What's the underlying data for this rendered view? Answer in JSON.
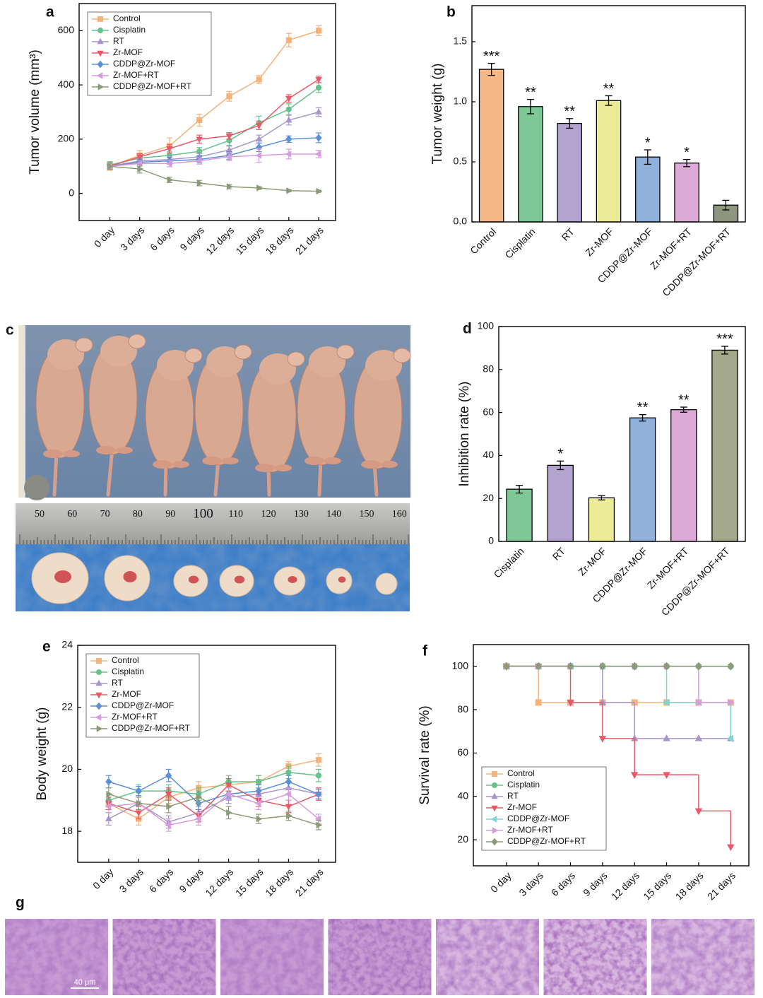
{
  "panel_labels": [
    "a",
    "b",
    "c",
    "d",
    "e",
    "f",
    "g"
  ],
  "photo": {
    "ruler_labels": [
      50,
      60,
      70,
      80,
      90,
      100,
      110,
      120,
      130,
      140,
      150,
      160
    ],
    "scale_bar": "40 μm"
  },
  "chart_data": [
    {
      "type": "line",
      "ylabel": "Tumor volume (mm³)",
      "categories": [
        "0 day",
        "3 days",
        "6 days",
        "9 days",
        "12 days",
        "15 days",
        "18 days",
        "21 days"
      ],
      "ylim": [
        -100,
        700
      ],
      "yticks": [
        0,
        200,
        400,
        600
      ],
      "legend": "upper left",
      "series": [
        {
          "name": "Control",
          "color": "#f5b27a",
          "marker": "square",
          "values": [
            100,
            140,
            175,
            270,
            358,
            420,
            565,
            600
          ],
          "errors": [
            15,
            18,
            30,
            22,
            18,
            15,
            25,
            18
          ]
        },
        {
          "name": "Cisplatin",
          "color": "#66c28a",
          "marker": "circle",
          "values": [
            105,
            130,
            140,
            155,
            195,
            260,
            310,
            390
          ],
          "errors": [
            12,
            12,
            15,
            14,
            18,
            25,
            20,
            18
          ]
        },
        {
          "name": "RT",
          "color": "#a796cc",
          "marker": "triangle-up",
          "values": [
            100,
            120,
            125,
            135,
            160,
            200,
            270,
            300
          ],
          "errors": [
            10,
            10,
            12,
            12,
            14,
            15,
            18,
            16
          ]
        },
        {
          "name": "Zr-MOF",
          "color": "#e8596a",
          "marker": "triangle-down",
          "values": [
            100,
            135,
            165,
            200,
            212,
            250,
            350,
            420
          ],
          "errors": [
            10,
            12,
            15,
            15,
            12,
            14,
            14,
            12
          ]
        },
        {
          "name": "CDDP@Zr-MOF",
          "color": "#5b8fd6",
          "marker": "diamond",
          "values": [
            100,
            115,
            120,
            125,
            140,
            170,
            200,
            205
          ],
          "errors": [
            10,
            10,
            12,
            12,
            14,
            16,
            12,
            18
          ]
        },
        {
          "name": "Zr-MOF+RT",
          "color": "#d79ce0",
          "marker": "triangle-left",
          "values": [
            100,
            110,
            110,
            120,
            135,
            140,
            145,
            145
          ],
          "errors": [
            10,
            10,
            12,
            12,
            15,
            25,
            18,
            14
          ]
        },
        {
          "name": "CDDP@Zr-MOF+RT",
          "color": "#8d9a78",
          "marker": "triangle-right",
          "values": [
            100,
            90,
            50,
            38,
            25,
            20,
            10,
            8
          ],
          "errors": [
            12,
            15,
            10,
            10,
            8,
            5,
            4,
            4
          ]
        }
      ]
    },
    {
      "type": "bar",
      "ylabel": "Tumor weight (g)",
      "categories": [
        "Control",
        "Cisplatin",
        "RT",
        "Zr-MOF",
        "CDDP@Zr-MOF",
        "Zr-MOF+RT",
        "CDDP@Zr-MOF+RT"
      ],
      "values": [
        1.27,
        0.96,
        0.82,
        1.01,
        0.54,
        0.49,
        0.14
      ],
      "errors": [
        0.05,
        0.06,
        0.04,
        0.04,
        0.06,
        0.03,
        0.04
      ],
      "annotations": [
        "***",
        "**",
        "**",
        "**",
        "*",
        "*",
        null
      ],
      "colors": [
        "#f5b886",
        "#7ec896",
        "#b2a4cf",
        "#ecec98",
        "#8fb1dc",
        "#dcaad6",
        "#8f9680"
      ],
      "ylim": [
        0,
        1.8
      ],
      "yticks": [
        {
          "value": 0,
          "label": "0.0"
        },
        0.5,
        {
          "value": 1,
          "label": "1.0"
        },
        1.5
      ]
    },
    {
      "type": "bar",
      "ylabel": "Inhibition rate (%)",
      "categories": [
        "Cisplatin",
        "RT",
        "Zr-MOF",
        "CDDP@Zr-MOF",
        "Zr-MOF+RT",
        "CDDP@Zr-MOF+RT"
      ],
      "values": [
        24.3,
        35.4,
        20.3,
        57.5,
        61.3,
        89
      ],
      "errors": [
        1.8,
        2,
        1,
        1.5,
        1.2,
        1.8
      ],
      "annotations": [
        null,
        "*",
        null,
        "**",
        "**",
        "***"
      ],
      "colors": [
        "#7ec896",
        "#b2a4cf",
        "#ecec98",
        "#8fb1dc",
        "#dcaad6",
        "#a3a88c"
      ],
      "ylim": [
        0,
        100
      ],
      "yticks": [
        0,
        20,
        40,
        60,
        80,
        100
      ]
    },
    {
      "type": "line",
      "ylabel": "Body weight (g)",
      "categories": [
        "0 day",
        "3 days",
        "6 days",
        "9 days",
        "12 days",
        "15 days",
        "18 days",
        "21 days"
      ],
      "ylim": [
        17,
        24
      ],
      "yticks": [
        18,
        20,
        22,
        24
      ],
      "legend": "upper left",
      "series": [
        {
          "name": "Control",
          "color": "#f5b27a",
          "marker": "square",
          "values": [
            18.9,
            18.4,
            19.1,
            19.4,
            19.5,
            19.6,
            20.1,
            20.3
          ],
          "errors": [
            0.2,
            0.2,
            0.2,
            0.2,
            0.2,
            0.2,
            0.15,
            0.2
          ]
        },
        {
          "name": "Cisplatin",
          "color": "#66c28a",
          "marker": "circle",
          "values": [
            19.0,
            19.3,
            19.3,
            19.2,
            19.6,
            19.6,
            19.9,
            19.8
          ],
          "errors": [
            0.2,
            0.2,
            0.2,
            0.2,
            0.2,
            0.2,
            0.2,
            0.2
          ]
        },
        {
          "name": "RT",
          "color": "#a796cc",
          "marker": "triangle-up",
          "values": [
            18.4,
            18.9,
            18.3,
            18.6,
            19.1,
            19.2,
            19.4,
            19.2
          ],
          "errors": [
            0.2,
            0.2,
            0.2,
            0.2,
            0.2,
            0.2,
            0.2,
            0.2
          ]
        },
        {
          "name": "Zr-MOF",
          "color": "#e8596a",
          "marker": "triangle-down",
          "values": [
            18.9,
            18.6,
            19.2,
            18.5,
            19.5,
            19.0,
            18.8,
            19.2
          ],
          "errors": [
            0.2,
            0.2,
            0.2,
            0.2,
            0.2,
            0.2,
            0.2,
            0.2
          ]
        },
        {
          "name": "CDDP@Zr-MOF",
          "color": "#5b8fd6",
          "marker": "diamond",
          "values": [
            19.6,
            19.3,
            19.8,
            18.9,
            19.2,
            19.3,
            19.6,
            19.2
          ],
          "errors": [
            0.2,
            0.15,
            0.2,
            0.2,
            0.2,
            0.2,
            0.2,
            0.15
          ]
        },
        {
          "name": "Zr-MOF+RT",
          "color": "#d79ce0",
          "marker": "triangle-left",
          "values": [
            18.8,
            18.9,
            18.2,
            18.4,
            19.2,
            18.9,
            19.2,
            18.4
          ],
          "errors": [
            0.2,
            0.2,
            0.2,
            0.2,
            0.2,
            0.2,
            0.2,
            0.15
          ]
        },
        {
          "name": "CDDP@Zr-MOF+RT",
          "color": "#8d9a78",
          "marker": "triangle-right",
          "values": [
            19.2,
            18.9,
            18.8,
            19.1,
            18.6,
            18.4,
            18.5,
            18.2
          ],
          "errors": [
            0.2,
            0.2,
            0.2,
            0.2,
            0.2,
            0.15,
            0.15,
            0.15
          ]
        }
      ]
    },
    {
      "type": "step",
      "ylabel": "Survival rate (%)",
      "categories": [
        "0 day",
        "3 days",
        "6 days",
        "9 days",
        "12 days",
        "15 days",
        "18 days",
        "21 days"
      ],
      "ylim": [
        8,
        110
      ],
      "yticks": [
        20,
        40,
        60,
        80,
        100
      ],
      "legend": "lower left",
      "series": [
        {
          "name": "Control",
          "color": "#f5b27a",
          "marker": "square",
          "values": [
            100,
            83.3,
            83.3,
            83.3,
            83.3,
            83.3,
            83.3,
            83.3
          ]
        },
        {
          "name": "Cisplatin",
          "color": "#66c28a",
          "marker": "circle",
          "values": [
            100,
            100,
            100,
            100,
            100,
            100,
            100,
            100
          ]
        },
        {
          "name": "RT",
          "color": "#a796cc",
          "marker": "triangle-up",
          "values": [
            100,
            100,
            100,
            83.3,
            66.7,
            66.7,
            66.7,
            66.7
          ]
        },
        {
          "name": "Zr-MOF",
          "color": "#e8596a",
          "marker": "triangle-down",
          "values": [
            100,
            100,
            83.3,
            66.7,
            50,
            50,
            33.3,
            16.7
          ]
        },
        {
          "name": "CDDP@Zr-MOF",
          "color": "#7fd6cf",
          "marker": "triangle-left",
          "values": [
            100,
            100,
            100,
            100,
            100,
            83.3,
            83.3,
            66.7
          ]
        },
        {
          "name": "Zr-MOF+RT",
          "color": "#d79ce0",
          "marker": "triangle-right",
          "values": [
            100,
            100,
            100,
            100,
            100,
            100,
            83.3,
            83.3
          ]
        },
        {
          "name": "CDDP@Zr-MOF+RT",
          "color": "#8d9a78",
          "marker": "diamond",
          "values": [
            100,
            100,
            100,
            100,
            100,
            100,
            100,
            100
          ]
        }
      ]
    }
  ]
}
